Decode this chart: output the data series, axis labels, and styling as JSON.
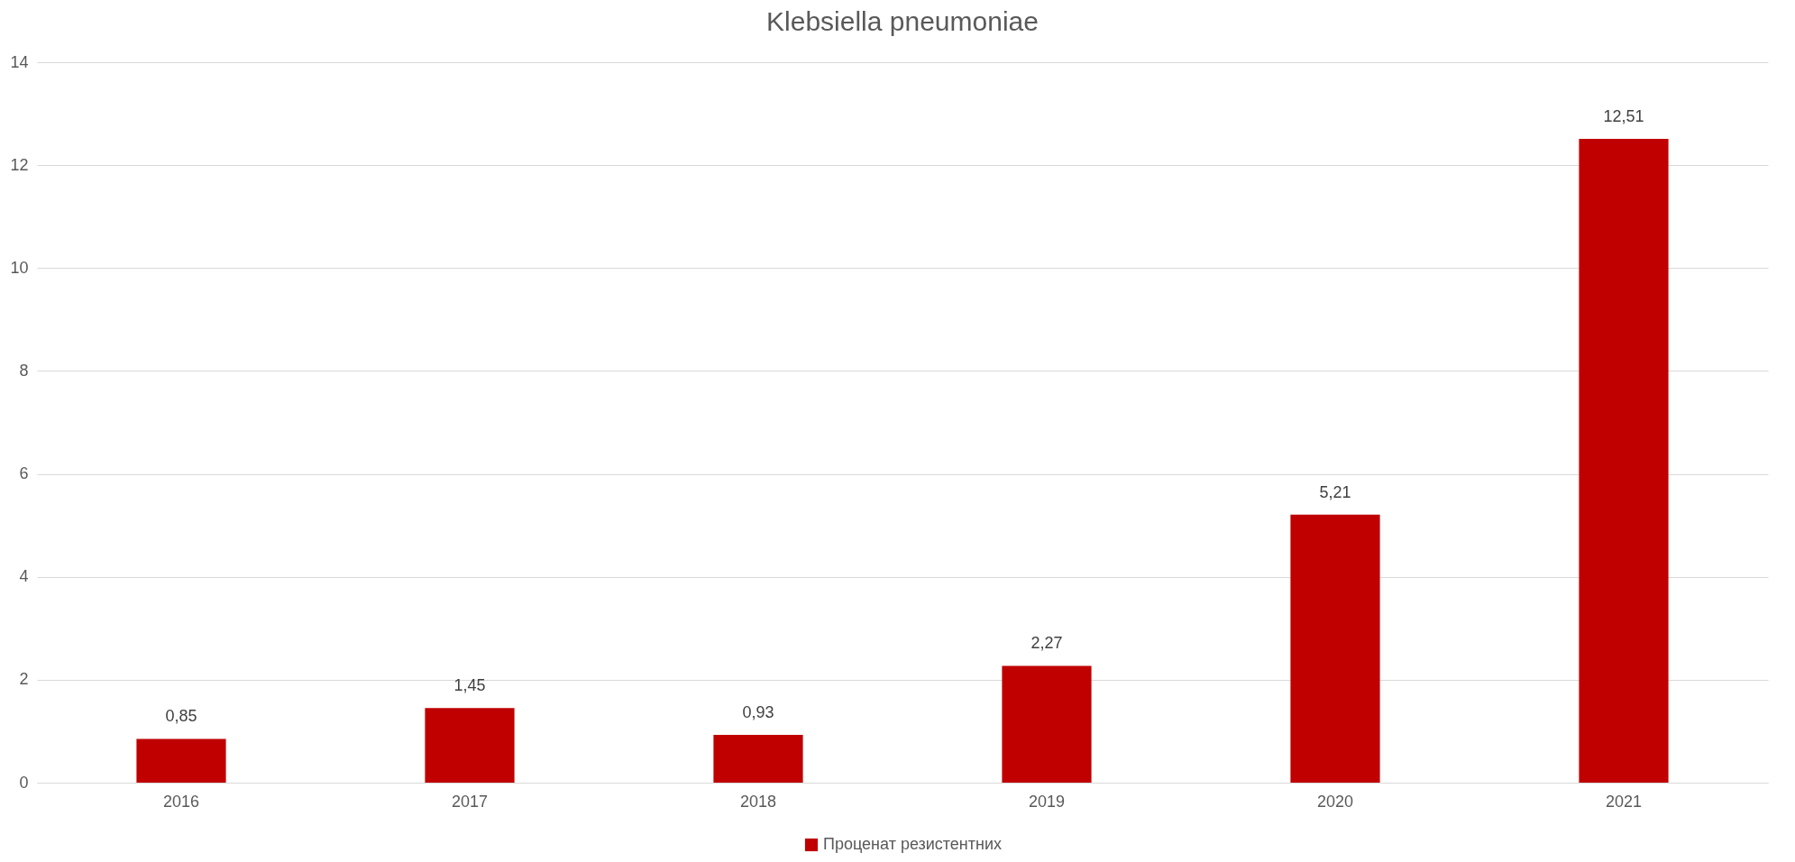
{
  "chart_data": {
    "type": "bar",
    "title": "Klebsiella pneumoniae",
    "categories": [
      "2016",
      "2017",
      "2018",
      "2019",
      "2020",
      "2021"
    ],
    "series": [
      {
        "name": "Проценат резистентних",
        "color": "#c00000",
        "values": [
          0.85,
          1.45,
          0.93,
          2.27,
          5.21,
          12.51
        ],
        "value_labels": [
          "0,85",
          "1,45",
          "0,93",
          "2,27",
          "5,21",
          "12,51"
        ]
      }
    ],
    "ylim": [
      0,
      14
    ],
    "yticks": [
      0,
      2,
      4,
      6,
      8,
      10,
      12,
      14
    ],
    "grid": "y",
    "legend": "bottom"
  }
}
